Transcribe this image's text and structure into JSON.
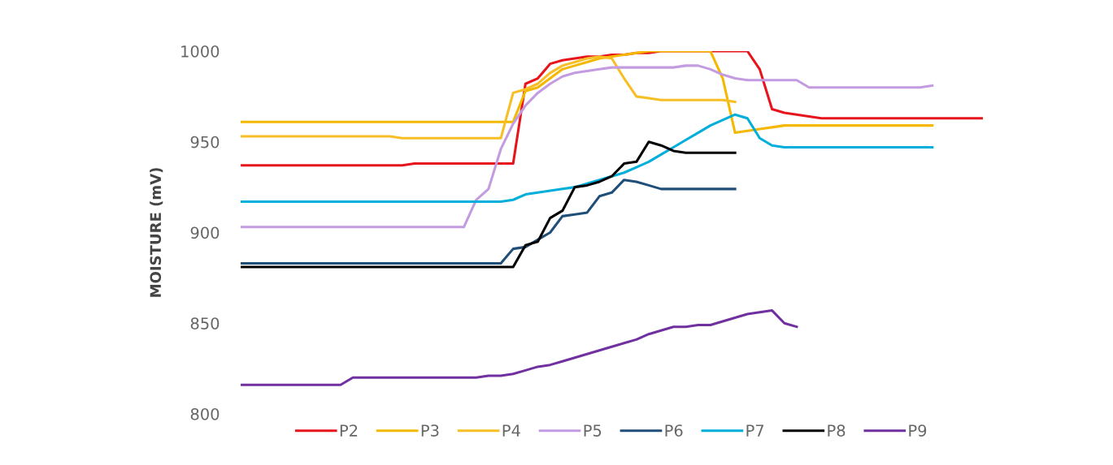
{
  "chart_data": {
    "type": "line",
    "ylabel": "MOISTURE (mV)",
    "ylim": [
      800,
      1000
    ],
    "yticks": [
      800,
      850,
      900,
      950,
      1000
    ],
    "grid": false,
    "legend": "bottom",
    "tick_labels": "y",
    "marker": "none",
    "line_style": "solid",
    "categories": [
      null,
      null,
      null,
      null,
      null,
      null,
      null,
      null,
      null,
      null,
      null,
      null,
      null,
      null,
      null,
      null,
      null,
      null,
      null,
      null,
      null,
      null,
      null,
      null,
      null,
      null,
      null,
      null,
      null,
      null,
      null,
      null,
      null,
      null,
      null,
      null,
      null,
      null,
      null,
      null,
      null,
      null,
      null,
      null,
      null,
      null,
      null,
      null,
      null,
      null,
      null,
      null,
      null,
      null,
      null,
      null,
      null,
      null,
      null,
      null,
      null
    ],
    "series": [
      {
        "name": "P2",
        "color": "#e8141c",
        "values": [
          937,
          937,
          937,
          937,
          937,
          937,
          937,
          937,
          937,
          937,
          937,
          937,
          937,
          937,
          938,
          938,
          938,
          938,
          938,
          938,
          938,
          938,
          938,
          982,
          985,
          993,
          995,
          996,
          997,
          997,
          998,
          998,
          999,
          999,
          1000,
          1000,
          1000,
          1000,
          1000,
          1000,
          1000,
          1000,
          990,
          968,
          966,
          965,
          964,
          963,
          963,
          963,
          963,
          963,
          963,
          963,
          963,
          963,
          963,
          963,
          963,
          963,
          963
        ]
      },
      {
        "name": "P3",
        "color": "#f5b800",
        "values": [
          961,
          961,
          961,
          961,
          961,
          961,
          961,
          961,
          961,
          961,
          961,
          961,
          961,
          961,
          961,
          961,
          961,
          961,
          961,
          961,
          961,
          961,
          961,
          978,
          980,
          985,
          990,
          992,
          994,
          996,
          997,
          998,
          999,
          1000,
          1000,
          1000,
          1000,
          1000,
          1000,
          985,
          955,
          956,
          957,
          958,
          959,
          959,
          959,
          959,
          959,
          959,
          959,
          959,
          959,
          959,
          959,
          959,
          959,
          null,
          null,
          null,
          null
        ]
      },
      {
        "name": "P4",
        "color": "#f7be26",
        "values": [
          953,
          953,
          953,
          953,
          953,
          953,
          953,
          953,
          953,
          953,
          953,
          953,
          953,
          952,
          952,
          952,
          952,
          952,
          952,
          952,
          952,
          952,
          977,
          979,
          982,
          988,
          992,
          994,
          996,
          997,
          996,
          985,
          975,
          974,
          973,
          973,
          973,
          973,
          973,
          973,
          972,
          null,
          null,
          null,
          null,
          null,
          null,
          null,
          null,
          null,
          null,
          null,
          null,
          null,
          null,
          null,
          null,
          null,
          null,
          null,
          null
        ]
      },
      {
        "name": "P5",
        "color": "#c39be0",
        "values": [
          903,
          903,
          903,
          903,
          903,
          903,
          903,
          903,
          903,
          903,
          903,
          903,
          903,
          903,
          903,
          903,
          903,
          903,
          903,
          918,
          924,
          946,
          960,
          970,
          977,
          982,
          986,
          988,
          989,
          990,
          991,
          991,
          991,
          991,
          991,
          991,
          992,
          992,
          990,
          987,
          985,
          984,
          984,
          984,
          984,
          984,
          980,
          980,
          980,
          980,
          980,
          980,
          980,
          980,
          980,
          980,
          981,
          null,
          null,
          null,
          null
        ]
      },
      {
        "name": "P6",
        "color": "#1f4e79",
        "values": [
          883,
          883,
          883,
          883,
          883,
          883,
          883,
          883,
          883,
          883,
          883,
          883,
          883,
          883,
          883,
          883,
          883,
          883,
          883,
          883,
          883,
          883,
          891,
          892,
          896,
          900,
          909,
          910,
          911,
          920,
          922,
          929,
          928,
          926,
          924,
          924,
          924,
          924,
          924,
          924,
          924,
          null,
          null,
          null,
          null,
          null,
          null,
          null,
          null,
          null,
          null,
          null,
          null,
          null,
          null,
          null,
          null,
          null,
          null,
          null,
          null
        ]
      },
      {
        "name": "P7",
        "color": "#00aedb",
        "values": [
          917,
          917,
          917,
          917,
          917,
          917,
          917,
          917,
          917,
          917,
          917,
          917,
          917,
          917,
          917,
          917,
          917,
          917,
          917,
          917,
          917,
          917,
          918,
          921,
          922,
          923,
          924,
          925,
          927,
          929,
          931,
          933,
          936,
          939,
          943,
          947,
          951,
          955,
          959,
          962,
          965,
          963,
          952,
          948,
          947,
          947,
          947,
          947,
          947,
          947,
          947,
          947,
          947,
          947,
          947,
          947,
          947,
          null,
          null,
          null,
          null
        ]
      },
      {
        "name": "P8",
        "color": "#000000",
        "values": [
          881,
          881,
          881,
          881,
          881,
          881,
          881,
          881,
          881,
          881,
          881,
          881,
          881,
          881,
          881,
          881,
          881,
          881,
          881,
          881,
          881,
          881,
          881,
          893,
          895,
          908,
          912,
          925,
          926,
          928,
          931,
          938,
          939,
          950,
          948,
          945,
          944,
          944,
          944,
          944,
          944,
          null,
          null,
          null,
          null,
          null,
          null,
          null,
          null,
          null,
          null,
          null,
          null,
          null,
          null,
          null,
          null,
          null,
          null,
          null,
          null
        ]
      },
      {
        "name": "P9",
        "color": "#7030a0",
        "values": [
          816,
          816,
          816,
          816,
          816,
          816,
          816,
          816,
          816,
          820,
          820,
          820,
          820,
          820,
          820,
          820,
          820,
          820,
          820,
          820,
          821,
          821,
          822,
          824,
          826,
          827,
          829,
          831,
          833,
          835,
          837,
          839,
          841,
          844,
          846,
          848,
          848,
          849,
          849,
          851,
          853,
          855,
          856,
          857,
          850,
          848,
          null,
          null,
          null,
          null,
          null,
          null,
          null,
          null,
          null,
          null,
          null,
          null,
          null,
          null,
          null
        ]
      }
    ]
  }
}
